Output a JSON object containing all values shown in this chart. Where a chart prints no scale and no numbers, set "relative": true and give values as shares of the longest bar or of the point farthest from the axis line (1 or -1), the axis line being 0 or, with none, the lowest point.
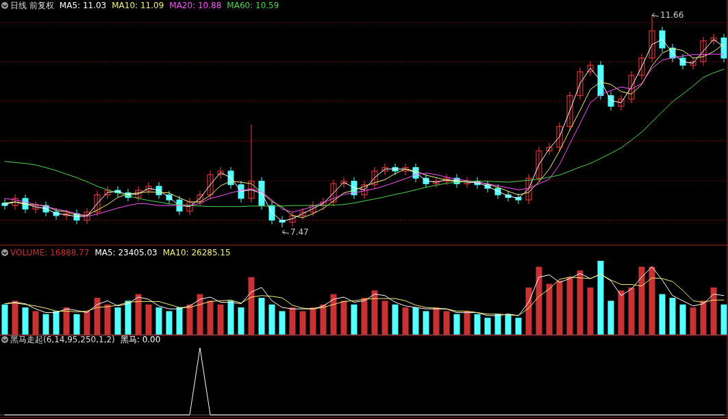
{
  "chart_data": [
    {
      "type": "candlestick",
      "title": "日线 前复权",
      "categories": [
        null,
        null,
        null,
        null,
        null,
        null,
        null,
        null,
        null,
        null,
        null,
        null,
        null,
        null,
        null,
        null,
        null,
        null,
        null,
        null,
        null,
        null,
        null,
        null,
        null,
        null,
        null,
        null,
        null,
        null,
        null,
        null,
        null,
        null,
        null,
        null,
        null,
        null,
        null,
        null,
        null,
        null,
        null,
        null,
        null,
        null,
        null,
        null,
        null,
        null,
        null,
        null,
        null,
        null,
        null,
        null,
        null,
        null,
        null,
        null,
        null,
        null,
        null,
        null,
        null,
        null,
        null,
        null,
        null,
        null,
        null
      ],
      "ohlc": [
        [
          7.95,
          8.03,
          7.82,
          7.9
        ],
        [
          7.9,
          8.12,
          7.82,
          8.04
        ],
        [
          8.04,
          8.12,
          7.75,
          7.83
        ],
        [
          7.83,
          7.98,
          7.75,
          7.9
        ],
        [
          7.9,
          7.98,
          7.69,
          7.77
        ],
        [
          7.77,
          7.85,
          7.62,
          7.7
        ],
        [
          7.7,
          7.82,
          7.62,
          7.74
        ],
        [
          7.74,
          7.82,
          7.53,
          7.61
        ],
        [
          7.61,
          7.85,
          7.53,
          7.77
        ],
        [
          7.77,
          8.19,
          7.69,
          8.11
        ],
        [
          8.11,
          8.28,
          8.03,
          8.2
        ],
        [
          8.2,
          8.28,
          8.07,
          8.15
        ],
        [
          8.15,
          8.23,
          7.98,
          8.06
        ],
        [
          8.06,
          8.28,
          7.98,
          8.2
        ],
        [
          8.2,
          8.36,
          8.12,
          8.28
        ],
        [
          8.28,
          8.36,
          8.03,
          8.11
        ],
        [
          8.11,
          8.19,
          7.93,
          8.01
        ],
        [
          8.01,
          8.09,
          7.71,
          7.79
        ],
        [
          7.79,
          8.05,
          7.71,
          7.97
        ],
        [
          7.97,
          8.19,
          7.89,
          8.11
        ],
        [
          8.11,
          8.59,
          8.03,
          8.51
        ],
        [
          8.51,
          8.66,
          8.43,
          8.58
        ],
        [
          8.58,
          8.66,
          8.23,
          8.31
        ],
        [
          8.31,
          8.39,
          7.96,
          8.04
        ],
        [
          8.04,
          9.5,
          7.96,
          8.38
        ],
        [
          8.38,
          8.46,
          7.82,
          7.9
        ],
        [
          7.9,
          7.98,
          7.53,
          7.61
        ],
        [
          7.61,
          7.69,
          7.47,
          7.57
        ],
        [
          7.57,
          7.78,
          7.49,
          7.7
        ],
        [
          7.7,
          7.85,
          7.62,
          7.77
        ],
        [
          7.77,
          7.98,
          7.69,
          7.9
        ],
        [
          7.9,
          8.05,
          7.82,
          7.97
        ],
        [
          7.97,
          8.41,
          7.89,
          8.33
        ],
        [
          8.33,
          8.46,
          8.25,
          8.38
        ],
        [
          8.38,
          8.46,
          8.03,
          8.11
        ],
        [
          8.11,
          8.39,
          8.03,
          8.31
        ],
        [
          8.31,
          8.66,
          8.23,
          8.58
        ],
        [
          8.58,
          8.73,
          8.5,
          8.65
        ],
        [
          8.65,
          8.73,
          8.5,
          8.58
        ],
        [
          8.58,
          8.73,
          8.5,
          8.65
        ],
        [
          8.65,
          8.73,
          8.36,
          8.44
        ],
        [
          8.44,
          8.52,
          8.25,
          8.33
        ],
        [
          8.33,
          8.46,
          8.25,
          8.38
        ],
        [
          8.38,
          8.52,
          8.3,
          8.44
        ],
        [
          8.44,
          8.52,
          8.25,
          8.33
        ],
        [
          8.33,
          8.46,
          8.25,
          8.38
        ],
        [
          8.38,
          8.46,
          8.23,
          8.31
        ],
        [
          8.31,
          8.39,
          8.16,
          8.24
        ],
        [
          8.24,
          8.32,
          8.03,
          8.11
        ],
        [
          8.11,
          8.19,
          7.98,
          8.06
        ],
        [
          8.06,
          8.14,
          7.93,
          8.01
        ],
        [
          8.01,
          8.52,
          7.93,
          8.44
        ],
        [
          8.44,
          9.06,
          8.36,
          8.98
        ],
        [
          8.98,
          9.13,
          8.9,
          9.05
        ],
        [
          9.05,
          9.54,
          8.97,
          9.46
        ],
        [
          9.46,
          10.15,
          9.38,
          10.07
        ],
        [
          10.07,
          10.62,
          9.99,
          10.54
        ],
        [
          10.54,
          10.75,
          10.46,
          10.67
        ],
        [
          10.67,
          10.75,
          9.99,
          10.07
        ],
        [
          10.07,
          10.15,
          9.78,
          9.86
        ],
        [
          9.86,
          10.08,
          9.78,
          10.0
        ],
        [
          10.0,
          10.55,
          9.92,
          10.47
        ],
        [
          10.47,
          10.89,
          10.39,
          10.81
        ],
        [
          10.81,
          11.66,
          10.73,
          11.35
        ],
        [
          11.35,
          11.43,
          10.93,
          11.01
        ],
        [
          11.01,
          11.09,
          10.73,
          10.81
        ],
        [
          10.81,
          10.89,
          10.59,
          10.67
        ],
        [
          10.67,
          10.82,
          10.59,
          10.74
        ],
        [
          10.74,
          11.23,
          10.66,
          11.15
        ],
        [
          11.15,
          11.29,
          11.07,
          11.21
        ],
        [
          11.21,
          11.29,
          10.73,
          10.81
        ]
      ],
      "colors": [
        "#54ffff",
        "#ff3c3c",
        "#54ffff",
        "#ff3c3c",
        "#54ffff",
        "#54ffff",
        "#ff3c3c",
        "#54ffff",
        "#ff3c3c",
        "#ff3c3c",
        "#ff3c3c",
        "#54ffff",
        "#54ffff",
        "#ff3c3c",
        "#ff3c3c",
        "#54ffff",
        "#54ffff",
        "#54ffff",
        "#ff3c3c",
        "#ff3c3c",
        "#ff3c3c",
        "#ff3c3c",
        "#54ffff",
        "#54ffff",
        "#ff3c3c",
        "#54ffff",
        "#54ffff",
        "#54ffff",
        "#ff3c3c",
        "#ff3c3c",
        "#ff3c3c",
        "#ff3c3c",
        "#ff3c3c",
        "#ff3c3c",
        "#54ffff",
        "#ff3c3c",
        "#ff3c3c",
        "#ff3c3c",
        "#54ffff",
        "#ff3c3c",
        "#54ffff",
        "#54ffff",
        "#ff3c3c",
        "#ff3c3c",
        "#54ffff",
        "#ff3c3c",
        "#54ffff",
        "#54ffff",
        "#54ffff",
        "#54ffff",
        "#54ffff",
        "#ff3c3c",
        "#ff3c3c",
        "#ff3c3c",
        "#ff3c3c",
        "#ff3c3c",
        "#ff3c3c",
        "#ff3c3c",
        "#54ffff",
        "#54ffff",
        "#ff3c3c",
        "#ff3c3c",
        "#ff3c3c",
        "#ff3c3c",
        "#54ffff",
        "#54ffff",
        "#54ffff",
        "#ff3c3c",
        "#ff3c3c",
        "#ff3c3c",
        "#54ffff"
      ],
      "series": [
        {
          "type": "line",
          "name": "MA5: 11.03",
          "color": "#ffffff",
          "values": [
            7.92,
            7.97,
            7.94,
            7.87,
            7.84,
            7.74,
            7.72,
            7.68,
            7.69,
            7.94,
            8.16,
            8.18,
            8.11,
            8.13,
            8.24,
            8.2,
            8.06,
            7.9,
            7.88,
            8.04,
            8.31,
            8.55,
            8.45,
            8.18,
            8.21,
            8.14,
            7.76,
            7.59,
            7.64,
            7.74,
            7.84,
            7.94,
            8.15,
            8.36,
            8.25,
            8.21,
            8.45,
            8.62,
            8.62,
            8.62,
            8.55,
            8.39,
            8.36,
            8.41,
            8.39,
            8.36,
            8.35,
            8.28,
            8.18,
            8.09,
            8.04,
            8.23,
            8.71,
            9.02,
            9.26,
            9.77,
            10.31,
            10.61,
            10.37,
            9.97,
            9.93,
            10.24,
            10.64,
            11.08,
            11.18,
            10.91,
            10.74,
            10.71,
            10.95,
            11.18,
            11.03
          ]
        },
        {
          "type": "line",
          "name": "MA10: 11.09",
          "color": "#f5f07a",
          "values": [
            7.95,
            7.97,
            7.92,
            7.92,
            7.89,
            7.8,
            7.78,
            7.71,
            7.71,
            7.81,
            7.92,
            8.06,
            8.13,
            8.15,
            8.17,
            8.16,
            8.15,
            8.05,
            7.97,
            7.97,
            8.1,
            8.29,
            8.38,
            8.36,
            8.33,
            8.16,
            7.98,
            7.87,
            7.7,
            7.66,
            7.74,
            7.84,
            7.99,
            8.15,
            8.2,
            8.28,
            8.35,
            8.41,
            8.53,
            8.62,
            8.58,
            8.5,
            8.45,
            8.4,
            8.37,
            8.38,
            8.37,
            8.32,
            8.26,
            8.18,
            8.11,
            8.16,
            8.37,
            8.62,
            8.98,
            9.39,
            9.78,
            10.19,
            10.34,
            10.29,
            10.15,
            10.1,
            10.29,
            10.66,
            10.91,
            11.0,
            10.96,
            10.81,
            10.84,
            10.94,
            11.09
          ]
        },
        {
          "type": "line",
          "name": "MA20: 10.88",
          "color": "#ff54ff",
          "values": [
            8.04,
            8.01,
            7.97,
            7.92,
            7.88,
            7.83,
            7.79,
            7.74,
            7.69,
            7.73,
            7.79,
            7.85,
            7.9,
            7.94,
            7.93,
            7.9,
            7.9,
            7.9,
            7.9,
            7.94,
            8.04,
            8.09,
            8.15,
            8.2,
            8.23,
            8.17,
            8.01,
            7.83,
            7.77,
            7.82,
            7.88,
            7.96,
            8.04,
            8.12,
            8.15,
            8.19,
            8.23,
            8.29,
            8.36,
            8.43,
            8.51,
            8.54,
            8.51,
            8.46,
            8.42,
            8.39,
            8.36,
            8.33,
            8.29,
            8.25,
            8.21,
            8.24,
            8.33,
            8.42,
            8.71,
            9.12,
            9.52,
            9.93,
            10.09,
            10.17,
            10.24,
            10.2,
            10.31,
            10.61,
            10.77,
            10.82,
            10.85,
            10.88,
            10.88,
            10.89,
            10.88
          ]
        },
        {
          "type": "line",
          "name": "MA60: 10.59",
          "color": "#4cd94c",
          "values": [
            8.77,
            8.75,
            8.73,
            8.7,
            8.65,
            8.59,
            8.52,
            8.45,
            8.37,
            8.28,
            8.21,
            8.15,
            8.09,
            8.04,
            8.0,
            7.97,
            7.93,
            7.92,
            7.9,
            7.89,
            7.88,
            7.88,
            7.88,
            7.88,
            7.89,
            7.89,
            7.89,
            7.89,
            7.9,
            7.9,
            7.9,
            7.9,
            7.91,
            7.92,
            7.95,
            7.99,
            8.03,
            8.07,
            8.12,
            8.16,
            8.21,
            8.26,
            8.3,
            8.34,
            8.36,
            8.37,
            8.38,
            8.38,
            8.37,
            8.36,
            8.38,
            8.4,
            8.42,
            8.46,
            8.5,
            8.58,
            8.66,
            8.73,
            8.83,
            8.93,
            9.04,
            9.19,
            9.35,
            9.55,
            9.75,
            9.95,
            10.1,
            10.26,
            10.43,
            10.52,
            10.59
          ]
        }
      ],
      "annotations": [
        "11.66",
        "7.47"
      ],
      "yticks": [
        {
          "value": 7.61,
          "label": null
        },
        {
          "value": 8.39,
          "label": null
        },
        {
          "value": 9.17,
          "label": null
        },
        {
          "value": 9.96,
          "label": null
        },
        {
          "value": 10.74,
          "label": null
        },
        {
          "value": 11.52,
          "label": null
        }
      ],
      "grid": "y",
      "legend": "top left"
    },
    {
      "type": "bar",
      "relative": true,
      "categories": [
        null,
        null,
        null,
        null,
        null,
        null,
        null,
        null,
        null,
        null,
        null,
        null,
        null,
        null,
        null,
        null,
        null,
        null,
        null,
        null,
        null,
        null,
        null,
        null,
        null,
        null,
        null,
        null,
        null,
        null,
        null,
        null,
        null,
        null,
        null,
        null,
        null,
        null,
        null,
        null,
        null,
        null,
        null,
        null,
        null,
        null,
        null,
        null,
        null,
        null,
        null,
        null,
        null,
        null,
        null,
        null,
        null,
        null,
        null,
        null,
        null,
        null,
        null,
        null,
        null,
        null,
        null,
        null,
        null,
        null,
        null
      ],
      "series": [
        {
          "type": "bar",
          "name": "VOLUME: 16888.77",
          "color": "#c83232",
          "colors": [
            "#54ffff",
            "#c83232",
            "#54ffff",
            "#c83232",
            "#54ffff",
            "#54ffff",
            "#c83232",
            "#54ffff",
            "#c83232",
            "#c83232",
            "#c83232",
            "#54ffff",
            "#54ffff",
            "#c83232",
            "#c83232",
            "#54ffff",
            "#54ffff",
            "#54ffff",
            "#c83232",
            "#c83232",
            "#c83232",
            "#c83232",
            "#54ffff",
            "#54ffff",
            "#c83232",
            "#54ffff",
            "#54ffff",
            "#54ffff",
            "#c83232",
            "#c83232",
            "#c83232",
            "#c83232",
            "#c83232",
            "#c83232",
            "#54ffff",
            "#c83232",
            "#c83232",
            "#c83232",
            "#54ffff",
            "#c83232",
            "#54ffff",
            "#54ffff",
            "#c83232",
            "#c83232",
            "#54ffff",
            "#c83232",
            "#54ffff",
            "#54ffff",
            "#54ffff",
            "#54ffff",
            "#54ffff",
            "#c83232",
            "#c83232",
            "#c83232",
            "#c83232",
            "#c83232",
            "#c83232",
            "#c83232",
            "#54ffff",
            "#54ffff",
            "#c83232",
            "#c83232",
            "#c83232",
            "#c83232",
            "#54ffff",
            "#54ffff",
            "#54ffff",
            "#c83232",
            "#c83232",
            "#c83232",
            "#54ffff"
          ],
          "values": [
            0.41,
            0.46,
            0.37,
            0.32,
            0.28,
            0.32,
            0.37,
            0.28,
            0.32,
            0.5,
            0.41,
            0.37,
            0.46,
            0.55,
            0.41,
            0.37,
            0.32,
            0.37,
            0.41,
            0.55,
            0.46,
            0.41,
            0.46,
            0.37,
            0.78,
            0.5,
            0.41,
            0.32,
            0.37,
            0.32,
            0.37,
            0.41,
            0.55,
            0.46,
            0.41,
            0.5,
            0.6,
            0.46,
            0.41,
            0.37,
            0.37,
            0.32,
            0.37,
            0.32,
            0.28,
            0.32,
            0.28,
            0.23,
            0.28,
            0.28,
            0.23,
            0.64,
            0.92,
            0.69,
            0.73,
            0.78,
            0.87,
            0.64,
            1,
            0.46,
            0.6,
            0.64,
            0.92,
            0.92,
            0.55,
            0.5,
            0.41,
            0.37,
            0.46,
            0.64,
            0.41
          ]
        },
        {
          "type": "line",
          "name": "MA5: 23405.03",
          "color": "#ffffff",
          "values": [
            0.42,
            0.44,
            0.42,
            0.35,
            0.3,
            0.3,
            0.35,
            0.33,
            0.3,
            0.41,
            0.46,
            0.39,
            0.42,
            0.51,
            0.48,
            0.39,
            0.35,
            0.35,
            0.39,
            0.48,
            0.51,
            0.44,
            0.44,
            0.42,
            0.58,
            0.64,
            0.46,
            0.37,
            0.35,
            0.35,
            0.35,
            0.39,
            0.48,
            0.51,
            0.44,
            0.46,
            0.55,
            0.53,
            0.44,
            0.39,
            0.37,
            0.35,
            0.35,
            0.35,
            0.3,
            0.3,
            0.3,
            0.26,
            0.26,
            0.28,
            0.26,
            0.44,
            0.78,
            0.81,
            0.71,
            0.76,
            0.83,
            0.76,
            0.82,
            0.73,
            0.53,
            0.62,
            0.78,
            0.92,
            0.74,
            0.53,
            0.46,
            0.39,
            0.42,
            0.55,
            0.53
          ]
        },
        {
          "type": "line",
          "name": "MA10: 26285.15",
          "color": "#f5f07a",
          "values": [
            0.42,
            0.43,
            0.41,
            0.39,
            0.36,
            0.32,
            0.32,
            0.31,
            0.32,
            0.37,
            0.38,
            0.4,
            0.44,
            0.45,
            0.45,
            0.45,
            0.41,
            0.37,
            0.37,
            0.41,
            0.45,
            0.46,
            0.47,
            0.43,
            0.51,
            0.53,
            0.52,
            0.5,
            0.4,
            0.36,
            0.35,
            0.37,
            0.41,
            0.45,
            0.46,
            0.48,
            0.49,
            0.49,
            0.49,
            0.46,
            0.4,
            0.37,
            0.36,
            0.35,
            0.32,
            0.32,
            0.3,
            0.28,
            0.28,
            0.27,
            0.26,
            0.36,
            0.52,
            0.62,
            0.75,
            0.78,
            0.77,
            0.76,
            0.82,
            0.74,
            0.68,
            0.68,
            0.66,
            0.77,
            0.76,
            0.72,
            0.6,
            0.46,
            0.44,
            0.47,
            0.47
          ]
        }
      ],
      "legend": "top left"
    },
    {
      "type": "line",
      "relative": true,
      "title": "黑马走起(6,14,95,250,1,2)",
      "categories": [
        null,
        null,
        null,
        null,
        null,
        null,
        null,
        null,
        null,
        null,
        null,
        null,
        null,
        null,
        null,
        null,
        null,
        null,
        null,
        null,
        null,
        null,
        null,
        null,
        null,
        null,
        null,
        null,
        null,
        null,
        null,
        null,
        null,
        null,
        null,
        null,
        null,
        null,
        null,
        null,
        null,
        null,
        null,
        null,
        null,
        null,
        null,
        null,
        null,
        null,
        null,
        null,
        null,
        null,
        null,
        null,
        null,
        null,
        null,
        null,
        null,
        null,
        null,
        null,
        null,
        null,
        null,
        null,
        null,
        null,
        null
      ],
      "series": [
        {
          "name": "黑马: 0.00",
          "color": "#ffffff",
          "values": [
            0,
            0,
            0,
            0,
            0,
            0,
            0,
            0,
            0,
            0,
            0,
            0,
            0,
            0,
            0,
            0,
            0,
            0,
            0,
            1,
            0,
            0,
            0,
            0,
            0,
            0,
            0,
            0,
            0,
            0,
            0,
            0,
            0,
            0,
            0,
            0,
            0,
            0,
            0,
            0,
            0,
            0,
            0,
            0,
            0,
            0,
            0,
            0,
            0,
            0,
            0,
            0,
            0,
            0,
            0,
            0,
            0,
            0,
            0,
            0,
            0,
            0,
            0,
            0,
            0,
            0,
            0,
            0,
            0,
            0,
            0
          ]
        }
      ],
      "legend": "top left"
    }
  ]
}
